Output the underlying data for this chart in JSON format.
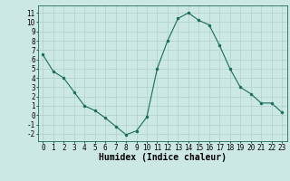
{
  "x": [
    0,
    1,
    2,
    3,
    4,
    5,
    6,
    7,
    8,
    9,
    10,
    11,
    12,
    13,
    14,
    15,
    16,
    17,
    18,
    19,
    20,
    21,
    22,
    23
  ],
  "y": [
    6.5,
    4.7,
    4.0,
    2.5,
    1.0,
    0.5,
    -0.3,
    -1.2,
    -2.1,
    -1.7,
    -0.2,
    5.0,
    8.0,
    10.4,
    11.0,
    10.2,
    9.7,
    7.5,
    5.0,
    3.0,
    2.3,
    1.3,
    1.3,
    0.3
  ],
  "line_color": "#1a6b5a",
  "marker": "o",
  "marker_size": 2.0,
  "bg_color": "#cce8e4",
  "grid_color": "#b0d0cc",
  "xlabel": "Humidex (Indice chaleur)",
  "xlabel_fontsize": 7,
  "xlim": [
    -0.5,
    23.5
  ],
  "ylim": [
    -2.8,
    11.8
  ],
  "xticks": [
    0,
    1,
    2,
    3,
    4,
    5,
    6,
    7,
    8,
    9,
    10,
    11,
    12,
    13,
    14,
    15,
    16,
    17,
    18,
    19,
    20,
    21,
    22,
    23
  ],
  "yticks": [
    -2,
    -1,
    0,
    1,
    2,
    3,
    4,
    5,
    6,
    7,
    8,
    9,
    10,
    11
  ],
  "tick_fontsize": 5.5
}
